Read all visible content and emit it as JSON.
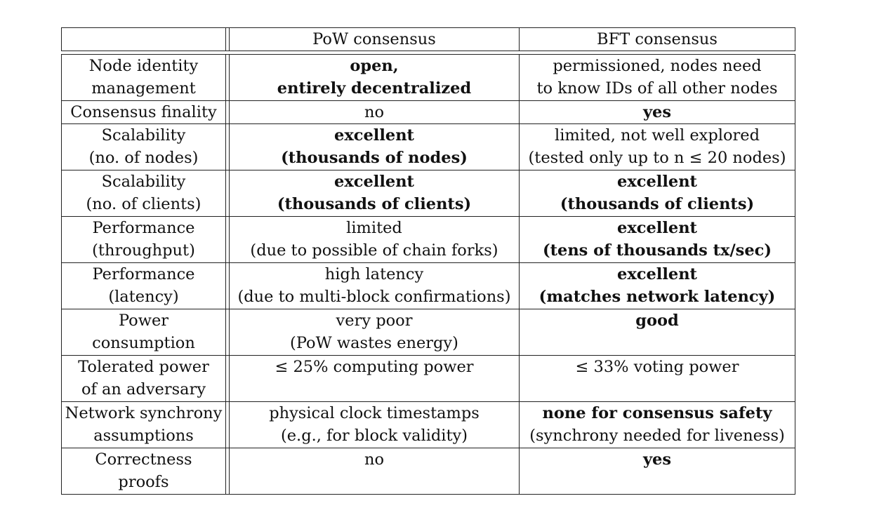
{
  "table": {
    "header": {
      "col1": "",
      "col2": "PoW consensus",
      "col3": "BFT consensus"
    },
    "rows": [
      {
        "label": [
          "Node identity",
          "management"
        ],
        "pow": [
          "open,",
          "entirely decentralized"
        ],
        "pow_bold": true,
        "bft": [
          "permissioned, nodes need",
          "to know IDs of all other nodes"
        ],
        "bft_bold": false
      },
      {
        "label": [
          "Consensus finality"
        ],
        "pow": [
          "no"
        ],
        "pow_bold": false,
        "bft": [
          "yes"
        ],
        "bft_bold": true
      },
      {
        "label": [
          "Scalability",
          "(no. of nodes)"
        ],
        "pow": [
          "excellent",
          "(thousands of nodes)"
        ],
        "pow_bold": true,
        "bft": [
          "limited, not well explored",
          "(tested only up to n ≤ 20 nodes)"
        ],
        "bft_bold": false
      },
      {
        "label": [
          "Scalability",
          "(no. of clients)"
        ],
        "pow": [
          "excellent",
          "(thousands of clients)"
        ],
        "pow_bold": true,
        "bft": [
          "excellent",
          "(thousands of clients)"
        ],
        "bft_bold": true
      },
      {
        "label": [
          "Performance",
          "(throughput)"
        ],
        "pow": [
          "limited",
          "(due to possible of chain forks)"
        ],
        "pow_bold": false,
        "bft": [
          "excellent",
          "(tens of thousands tx/sec)"
        ],
        "bft_bold": true
      },
      {
        "label": [
          "Performance",
          "(latency)"
        ],
        "pow": [
          "high latency",
          "(due to multi-block confirmations)"
        ],
        "pow_bold": false,
        "bft": [
          "excellent",
          "(matches network latency)"
        ],
        "bft_bold": true
      },
      {
        "label": [
          "Power",
          "consumption"
        ],
        "pow": [
          "very poor",
          "(PoW wastes energy)"
        ],
        "pow_bold": false,
        "bft": [
          "good"
        ],
        "bft_bold": true
      },
      {
        "label": [
          "Tolerated power",
          "of an adversary"
        ],
        "pow": [
          "≤ 25% computing power"
        ],
        "pow_bold": false,
        "bft": [
          "≤ 33% voting power"
        ],
        "bft_bold": false
      },
      {
        "label": [
          "Network synchrony",
          "assumptions"
        ],
        "pow": [
          "physical clock timestamps",
          "(e.g., for block validity)"
        ],
        "pow_bold": false,
        "bft": [
          "none for consensus safety",
          "(synchrony needed for liveness)"
        ],
        "bft_bold_lines": [
          true,
          false
        ]
      },
      {
        "label": [
          "Correctness",
          "proofs"
        ],
        "pow": [
          "no"
        ],
        "pow_bold": false,
        "bft": [
          "yes"
        ],
        "bft_bold": true
      }
    ]
  }
}
